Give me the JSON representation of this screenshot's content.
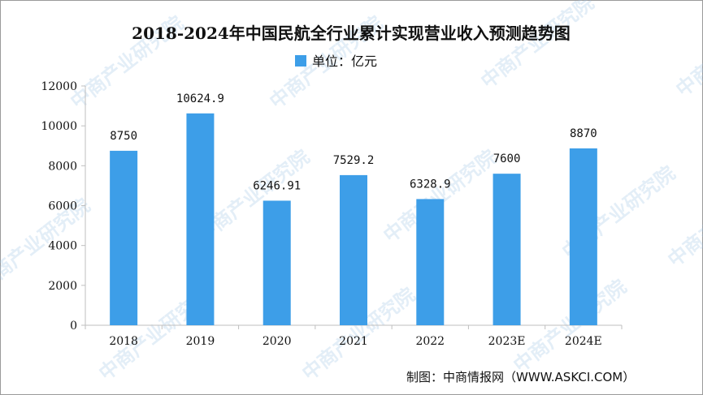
{
  "chart_data": {
    "type": "bar",
    "title": "2018-2024年中国民航全行业累计实现营业收入预测趋势图",
    "legend": "单位：亿元",
    "legend_placement": "top-center",
    "categories": [
      "2018",
      "2019",
      "2020",
      "2021",
      "2022",
      "2023E",
      "2024E"
    ],
    "values": [
      8750,
      10624.9,
      6246.91,
      7529.2,
      6328.9,
      7600,
      8870
    ],
    "value_labels": [
      "8750",
      "10624.9",
      "6246.91",
      "7529.2",
      "6328.9",
      "7600",
      "8870"
    ],
    "ylim": [
      0,
      12000
    ],
    "yticks": [
      "0",
      "2000",
      "4000",
      "6000",
      "8000",
      "10000",
      "12000"
    ],
    "grid": false,
    "bar_color": "#3d9ee8"
  },
  "source": "制图：中商情报网（WWW.ASKCI.COM）",
  "watermark": "中商产业研究院"
}
